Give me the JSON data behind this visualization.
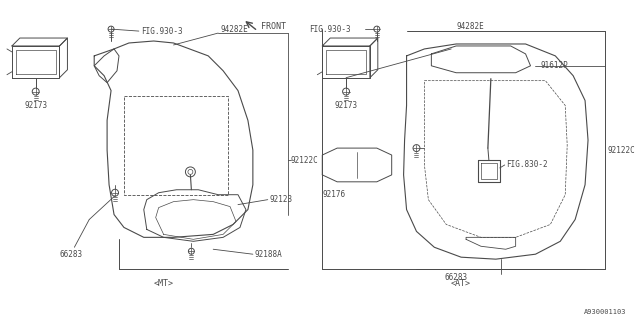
{
  "bg_color": "#ffffff",
  "line_color": "#4a4a4a",
  "text_color": "#4a4a4a",
  "fig_width": 6.4,
  "fig_height": 3.2,
  "dpi": 100,
  "part_number_bottom": "A930001103",
  "mt_label": "<MT>",
  "at_label": "<AT>",
  "front_label": "FRONT",
  "left_parts": {
    "fig930_3_label": "FIG.930-3",
    "p94282E": "94282E",
    "p92173": "92173",
    "p92122C": "92122C",
    "p92123": "92123",
    "p92188A": "92188A",
    "p66283": "66283"
  },
  "right_parts": {
    "fig930_3_label": "FIG.930-3",
    "p94282E": "94282E",
    "p91612P": "91612P",
    "p92173": "92173",
    "p92122C": "92122C",
    "p92176": "92176",
    "p66283": "66283",
    "fig830_2": "FIG.830-2"
  }
}
